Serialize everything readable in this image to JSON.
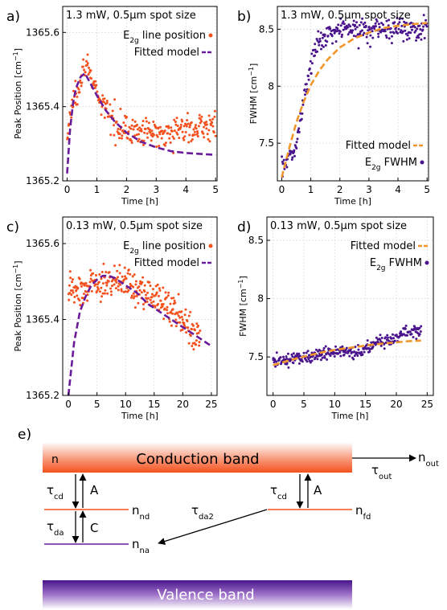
{
  "chart_data": [
    {
      "type": "scatter",
      "panel_label": "a)",
      "title": "1.3 mW, 0.5µm spot size",
      "xlabel": "Time [h]",
      "ylabel_main": "Peak Position [cm",
      "ylabel_sup": "−1",
      "ylabel_end": "]",
      "xlim": [
        -0.15,
        5.05
      ],
      "ylim": [
        1365.2,
        1365.67
      ],
      "xticks": [
        0,
        1,
        2,
        3,
        4,
        5
      ],
      "yticks": [
        1365.2,
        1365.4,
        1365.6
      ],
      "ytick_labels": [
        "1365.2",
        "1365.4",
        "1365.6"
      ],
      "legend": [
        {
          "main": "E",
          "sub": "2g",
          "rest": " line position",
          "kind": "dot",
          "color": "#f4511e"
        },
        {
          "main": "Fitted model",
          "sub": "",
          "rest": "",
          "kind": "dash",
          "color": "#6a1b9a"
        }
      ],
      "legend_position": "top-right",
      "scatter_anchors": [
        [
          0,
          1365.31
        ],
        [
          0.1,
          1365.38
        ],
        [
          0.3,
          1365.44
        ],
        [
          0.5,
          1365.49
        ],
        [
          0.65,
          1365.52
        ],
        [
          0.8,
          1365.48
        ],
        [
          1.0,
          1365.43
        ],
        [
          1.3,
          1365.39
        ],
        [
          1.6,
          1365.36
        ],
        [
          2.0,
          1365.34
        ],
        [
          2.5,
          1365.33
        ],
        [
          3.0,
          1365.33
        ],
        [
          4.0,
          1365.34
        ],
        [
          5.0,
          1365.35
        ]
      ],
      "scatter_count": 300,
      "scatter_spread": 0.018,
      "scatter_color": "#f4511e",
      "fit_points": [
        [
          0,
          1365.22
        ],
        [
          0.1,
          1365.34
        ],
        [
          0.2,
          1365.41
        ],
        [
          0.3,
          1365.45
        ],
        [
          0.45,
          1365.48
        ],
        [
          0.6,
          1365.49
        ],
        [
          0.8,
          1365.46
        ],
        [
          1.0,
          1365.43
        ],
        [
          1.3,
          1365.39
        ],
        [
          1.6,
          1365.36
        ],
        [
          2.0,
          1365.33
        ],
        [
          2.5,
          1365.305
        ],
        [
          3.0,
          1365.29
        ],
        [
          3.5,
          1365.28
        ],
        [
          4.0,
          1365.275
        ],
        [
          5.0,
          1365.27
        ]
      ],
      "fit_color": "#6a1b9a"
    },
    {
      "type": "scatter",
      "panel_label": "b)",
      "title": "1.3 mW, 0.5µm spot size",
      "xlabel": "Time [h]",
      "ylabel_main": "FWHM [cm",
      "ylabel_sup": "−1",
      "ylabel_end": "]",
      "xlim": [
        -0.15,
        5.05
      ],
      "ylim": [
        7.17,
        8.7
      ],
      "xticks": [
        0,
        1,
        2,
        3,
        4,
        5
      ],
      "yticks": [
        7.5,
        8,
        8.5
      ],
      "ytick_labels": [
        "7.5",
        "8",
        "8.5"
      ],
      "legend": [
        {
          "main": "Fitted model",
          "sub": "",
          "rest": "",
          "kind": "dash",
          "color": "#f0962a"
        },
        {
          "main": "E",
          "sub": "2g",
          "rest": " FWHM",
          "kind": "dot",
          "color": "#4a148c"
        }
      ],
      "legend_position": "bottom-right",
      "scatter_anchors": [
        [
          0,
          7.3
        ],
        [
          0.3,
          7.38
        ],
        [
          0.5,
          7.5
        ],
        [
          0.7,
          7.78
        ],
        [
          0.9,
          8.1
        ],
        [
          1.1,
          8.3
        ],
        [
          1.4,
          8.42
        ],
        [
          1.8,
          8.49
        ],
        [
          2.5,
          8.51
        ],
        [
          3.5,
          8.51
        ],
        [
          5.0,
          8.5
        ]
      ],
      "scatter_count": 280,
      "scatter_spread": 0.05,
      "scatter_color": "#4a148c",
      "fit_points": [
        [
          0,
          7.2
        ],
        [
          0.25,
          7.45
        ],
        [
          0.5,
          7.68
        ],
        [
          0.75,
          7.86
        ],
        [
          1.0,
          8.01
        ],
        [
          1.3,
          8.14
        ],
        [
          1.6,
          8.24
        ],
        [
          2.0,
          8.34
        ],
        [
          2.5,
          8.42
        ],
        [
          3.0,
          8.47
        ],
        [
          3.5,
          8.51
        ],
        [
          4.0,
          8.53
        ],
        [
          4.5,
          8.545
        ],
        [
          5.0,
          8.555
        ]
      ],
      "fit_color": "#f0962a"
    },
    {
      "type": "scatter",
      "panel_label": "c)",
      "title": "0.13 mW, 0.5µm spot size",
      "xlabel": "Time [h]",
      "ylabel_main": "Peak Position [cm",
      "ylabel_sup": "−1",
      "ylabel_end": "]",
      "xlim": [
        -1,
        26
      ],
      "ylim": [
        1365.2,
        1365.67
      ],
      "xticks": [
        0,
        5,
        10,
        15,
        20,
        25
      ],
      "yticks": [
        1365.2,
        1365.4,
        1365.6
      ],
      "ytick_labels": [
        "1365.2",
        "1365.4",
        "1365.6"
      ],
      "legend": [
        {
          "main": "E",
          "sub": "2g",
          "rest": " line position",
          "kind": "dot",
          "color": "#f4511e"
        },
        {
          "main": "Fitted model",
          "sub": "",
          "rest": "",
          "kind": "dash",
          "color": "#6a1b9a"
        }
      ],
      "legend_position": "top-right",
      "scatter_anchors": [
        [
          0,
          1365.48
        ],
        [
          3,
          1365.485
        ],
        [
          6,
          1365.5
        ],
        [
          9,
          1365.5
        ],
        [
          12,
          1365.48
        ],
        [
          15,
          1365.46
        ],
        [
          18,
          1365.43
        ],
        [
          21,
          1365.38
        ],
        [
          23,
          1365.36
        ]
      ],
      "scatter_count": 300,
      "scatter_spread": 0.022,
      "scatter_color": "#f4511e",
      "fit_points": [
        [
          0,
          1365.2
        ],
        [
          1,
          1365.34
        ],
        [
          2,
          1365.42
        ],
        [
          3,
          1365.46
        ],
        [
          4,
          1365.49
        ],
        [
          5,
          1365.505
        ],
        [
          6,
          1365.515
        ],
        [
          7,
          1365.515
        ],
        [
          8,
          1365.51
        ],
        [
          10,
          1365.49
        ],
        [
          12,
          1365.47
        ],
        [
          14,
          1365.44
        ],
        [
          16,
          1365.42
        ],
        [
          18,
          1365.4
        ],
        [
          20,
          1365.38
        ],
        [
          22,
          1365.36
        ],
        [
          25,
          1365.33
        ]
      ],
      "fit_color": "#6a1b9a"
    },
    {
      "type": "scatter",
      "panel_label": "d)",
      "title": "0.13 mW, 0.5µm spot size",
      "xlabel": "Time [h]",
      "ylabel_main": "FWHM [cm",
      "ylabel_sup": "−1",
      "ylabel_end": "]",
      "xlim": [
        -1,
        26
      ],
      "ylim": [
        7.17,
        8.7
      ],
      "xticks": [
        0,
        5,
        10,
        15,
        20,
        25
      ],
      "yticks": [
        7.5,
        8,
        8.5
      ],
      "ytick_labels": [
        "7.5",
        "8",
        "8.5"
      ],
      "legend": [
        {
          "main": "Fitted model",
          "sub": "",
          "rest": "",
          "kind": "dash",
          "color": "#f0962a"
        },
        {
          "main": "E",
          "sub": "2g",
          "rest": " FWHM",
          "kind": "dot",
          "color": "#4a148c"
        }
      ],
      "legend_position": "top-right",
      "scatter_anchors": [
        [
          0,
          7.46
        ],
        [
          5,
          7.5
        ],
        [
          10,
          7.54
        ],
        [
          14,
          7.55
        ],
        [
          17,
          7.62
        ],
        [
          20,
          7.67
        ],
        [
          22,
          7.72
        ],
        [
          24,
          7.72
        ]
      ],
      "scatter_count": 300,
      "scatter_spread": 0.028,
      "scatter_color": "#4a148c",
      "fit_points": [
        [
          0,
          7.43
        ],
        [
          2,
          7.46
        ],
        [
          4,
          7.49
        ],
        [
          6,
          7.515
        ],
        [
          8,
          7.54
        ],
        [
          10,
          7.56
        ],
        [
          12,
          7.575
        ],
        [
          14,
          7.59
        ],
        [
          16,
          7.605
        ],
        [
          18,
          7.615
        ],
        [
          20,
          7.625
        ],
        [
          22,
          7.635
        ],
        [
          24,
          7.64
        ]
      ],
      "fit_color": "#f0962a"
    }
  ],
  "diagram": {
    "panel_label": "e)",
    "conduction_band": "Conduction band",
    "valence_band": "Valence band",
    "n": "n",
    "tau": "τ",
    "sub_cd": "cd",
    "sub_da": "da",
    "sub_da2": "da2",
    "sub_out": "out",
    "label_A": "A",
    "label_C": "C",
    "n_nd_main": "n",
    "n_nd_sub": "nd",
    "n_na_main": "n",
    "n_na_sub": "na",
    "n_fd_main": "n",
    "n_fd_sub": "fd",
    "n_out_main": "n",
    "n_out_sub": "out",
    "colors": {
      "conduction": "#f4511e",
      "valence": "#6a1b9a",
      "level_orange": "#f4511e",
      "level_purple": "#6a1b9a"
    }
  }
}
